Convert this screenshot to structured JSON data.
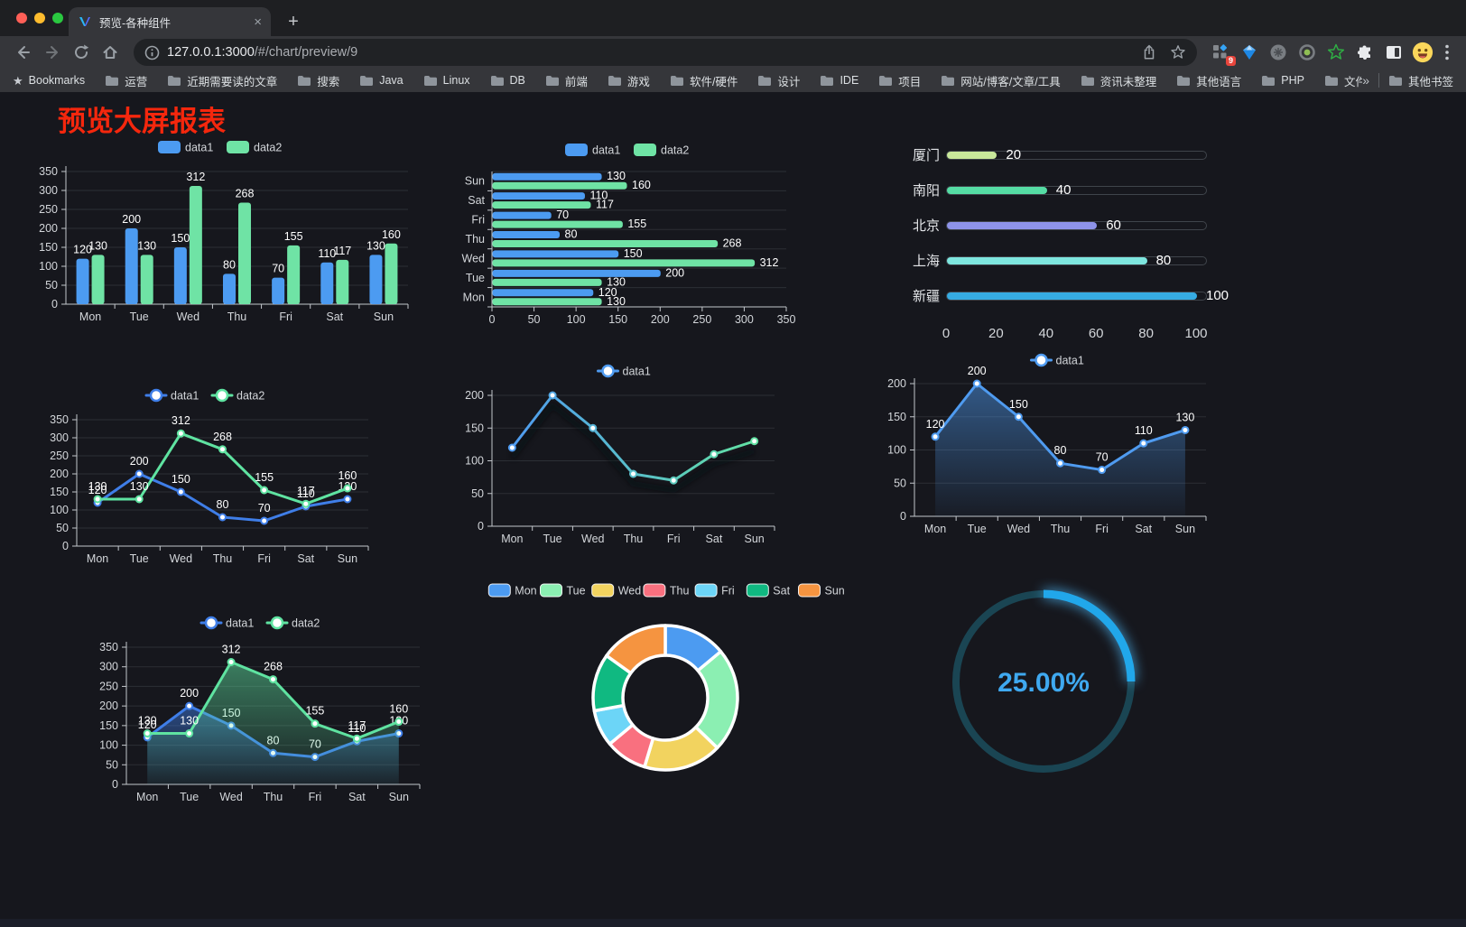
{
  "browser": {
    "tab_title": "预览-各种组件",
    "url_host": "127.0.0.1:3000",
    "url_path": "/#/chart/preview/9",
    "bookmarks_label": "Bookmarks",
    "bookmarks": [
      "运营",
      "近期需要读的文章",
      "搜索",
      "Java",
      "Linux",
      "DB",
      "前端",
      "游戏",
      "软件/硬件",
      "设计",
      "IDE",
      "项目",
      "网站/博客/文章/工具",
      "资讯未整理",
      "其他语言",
      "PHP",
      "文件服务器"
    ],
    "overflow_chevron": "»",
    "other_bookmarks": "其他书签",
    "extension_badge": "9",
    "newtab_glyph": "+",
    "tab_close_glyph": "×"
  },
  "page": {
    "heading": "预览大屏报表",
    "heading_color": "#f5270d",
    "background": "#16171d"
  },
  "chart_data": [
    {
      "id": "bar-grouped",
      "type": "bar",
      "categories": [
        "Mon",
        "Tue",
        "Wed",
        "Thu",
        "Fri",
        "Sat",
        "Sun"
      ],
      "series": [
        {
          "name": "data1",
          "color": "#4C9BF1",
          "values": [
            120,
            200,
            150,
            80,
            70,
            110,
            130
          ]
        },
        {
          "name": "data2",
          "color": "#6FE3A5",
          "values": [
            130,
            130,
            312,
            268,
            155,
            117,
            160
          ]
        }
      ],
      "ylim": [
        0,
        350
      ],
      "ystep": 50,
      "value_labels": true,
      "grid": true,
      "legend_position": "top"
    },
    {
      "id": "bar-horizontal",
      "type": "bar",
      "orientation": "horizontal",
      "categories": [
        "Mon",
        "Tue",
        "Wed",
        "Thu",
        "Fri",
        "Sat",
        "Sun"
      ],
      "series": [
        {
          "name": "data1",
          "color": "#4C9BF1",
          "values": [
            120,
            200,
            150,
            80,
            70,
            110,
            130
          ]
        },
        {
          "name": "data2",
          "color": "#6FE3A5",
          "values": [
            130,
            130,
            312,
            268,
            155,
            117,
            160
          ]
        }
      ],
      "xlim": [
        0,
        350
      ],
      "xstep": 50,
      "value_labels": true,
      "grid": true,
      "legend_position": "top"
    },
    {
      "id": "progress-list",
      "type": "bar",
      "variant": "progress",
      "categories": [
        "厦门",
        "南阳",
        "北京",
        "上海",
        "新疆"
      ],
      "values": [
        20,
        40,
        60,
        80,
        100
      ],
      "colors": [
        "#C9E89B",
        "#55DCA4",
        "#8E93E9",
        "#7EE6DF",
        "#36ABE2"
      ],
      "xlim": [
        0,
        100
      ],
      "xticks": [
        0,
        20,
        40,
        60,
        80,
        100
      ]
    },
    {
      "id": "line-basic",
      "type": "line",
      "categories": [
        "Mon",
        "Tue",
        "Wed",
        "Thu",
        "Fri",
        "Sat",
        "Sun"
      ],
      "series": [
        {
          "name": "data1",
          "color": "#3F7EE8",
          "values": [
            120,
            200,
            150,
            80,
            70,
            110,
            130
          ]
        },
        {
          "name": "data2",
          "color": "#5FE3A1",
          "values": [
            130,
            130,
            312,
            268,
            155,
            117,
            160
          ]
        }
      ],
      "ylim": [
        0,
        350
      ],
      "ystep": 50,
      "value_labels": true,
      "grid": true,
      "legend_position": "top"
    },
    {
      "id": "line-gradient",
      "type": "line",
      "categories": [
        "Mon",
        "Tue",
        "Wed",
        "Thu",
        "Fri",
        "Sat",
        "Sun"
      ],
      "series": [
        {
          "name": "data1",
          "gradient": [
            "#4F9BF0",
            "#62E2A3"
          ],
          "shadow": true,
          "values": [
            120,
            200,
            150,
            80,
            70,
            110,
            130
          ]
        }
      ],
      "ylim": [
        0,
        200
      ],
      "ystep": 50,
      "value_labels": false,
      "grid": true,
      "legend_position": "top"
    },
    {
      "id": "line-area",
      "type": "line",
      "categories": [
        "Mon",
        "Tue",
        "Wed",
        "Thu",
        "Fri",
        "Sat",
        "Sun"
      ],
      "series": [
        {
          "name": "data1",
          "color": "#4F9BF0",
          "area": true,
          "values": [
            120,
            200,
            150,
            80,
            70,
            110,
            130
          ]
        }
      ],
      "ylim": [
        0,
        200
      ],
      "ystep": 50,
      "value_labels": true,
      "grid": true,
      "legend_position": "top"
    },
    {
      "id": "line-area-double",
      "type": "line",
      "categories": [
        "Mon",
        "Tue",
        "Wed",
        "Thu",
        "Fri",
        "Sat",
        "Sun"
      ],
      "series": [
        {
          "name": "data1",
          "color": "#3F7EE8",
          "area": true,
          "values": [
            120,
            200,
            150,
            80,
            70,
            110,
            130
          ]
        },
        {
          "name": "data2",
          "color": "#5FE3A1",
          "area": true,
          "values": [
            130,
            130,
            312,
            268,
            155,
            117,
            160
          ]
        }
      ],
      "ylim": [
        0,
        350
      ],
      "ystep": 50,
      "value_labels": true,
      "grid": true,
      "legend_position": "top"
    },
    {
      "id": "pie-donut",
      "type": "pie",
      "variant": "donut",
      "categories": [
        "Mon",
        "Tue",
        "Wed",
        "Thu",
        "Fri",
        "Sat",
        "Sun"
      ],
      "values": [
        120,
        200,
        150,
        80,
        70,
        110,
        130
      ],
      "colors": [
        "#4C9BF1",
        "#8BEFB2",
        "#F2D35F",
        "#F9707F",
        "#6CD5F7",
        "#10B981",
        "#F59440"
      ],
      "legend_position": "top"
    },
    {
      "id": "ring-gauge",
      "type": "gauge",
      "value": 25,
      "max": 100,
      "label": "25.00%",
      "arc_color": "#21A7EA",
      "track_color": "#1A4553",
      "text_color": "#3FA9F0"
    }
  ]
}
